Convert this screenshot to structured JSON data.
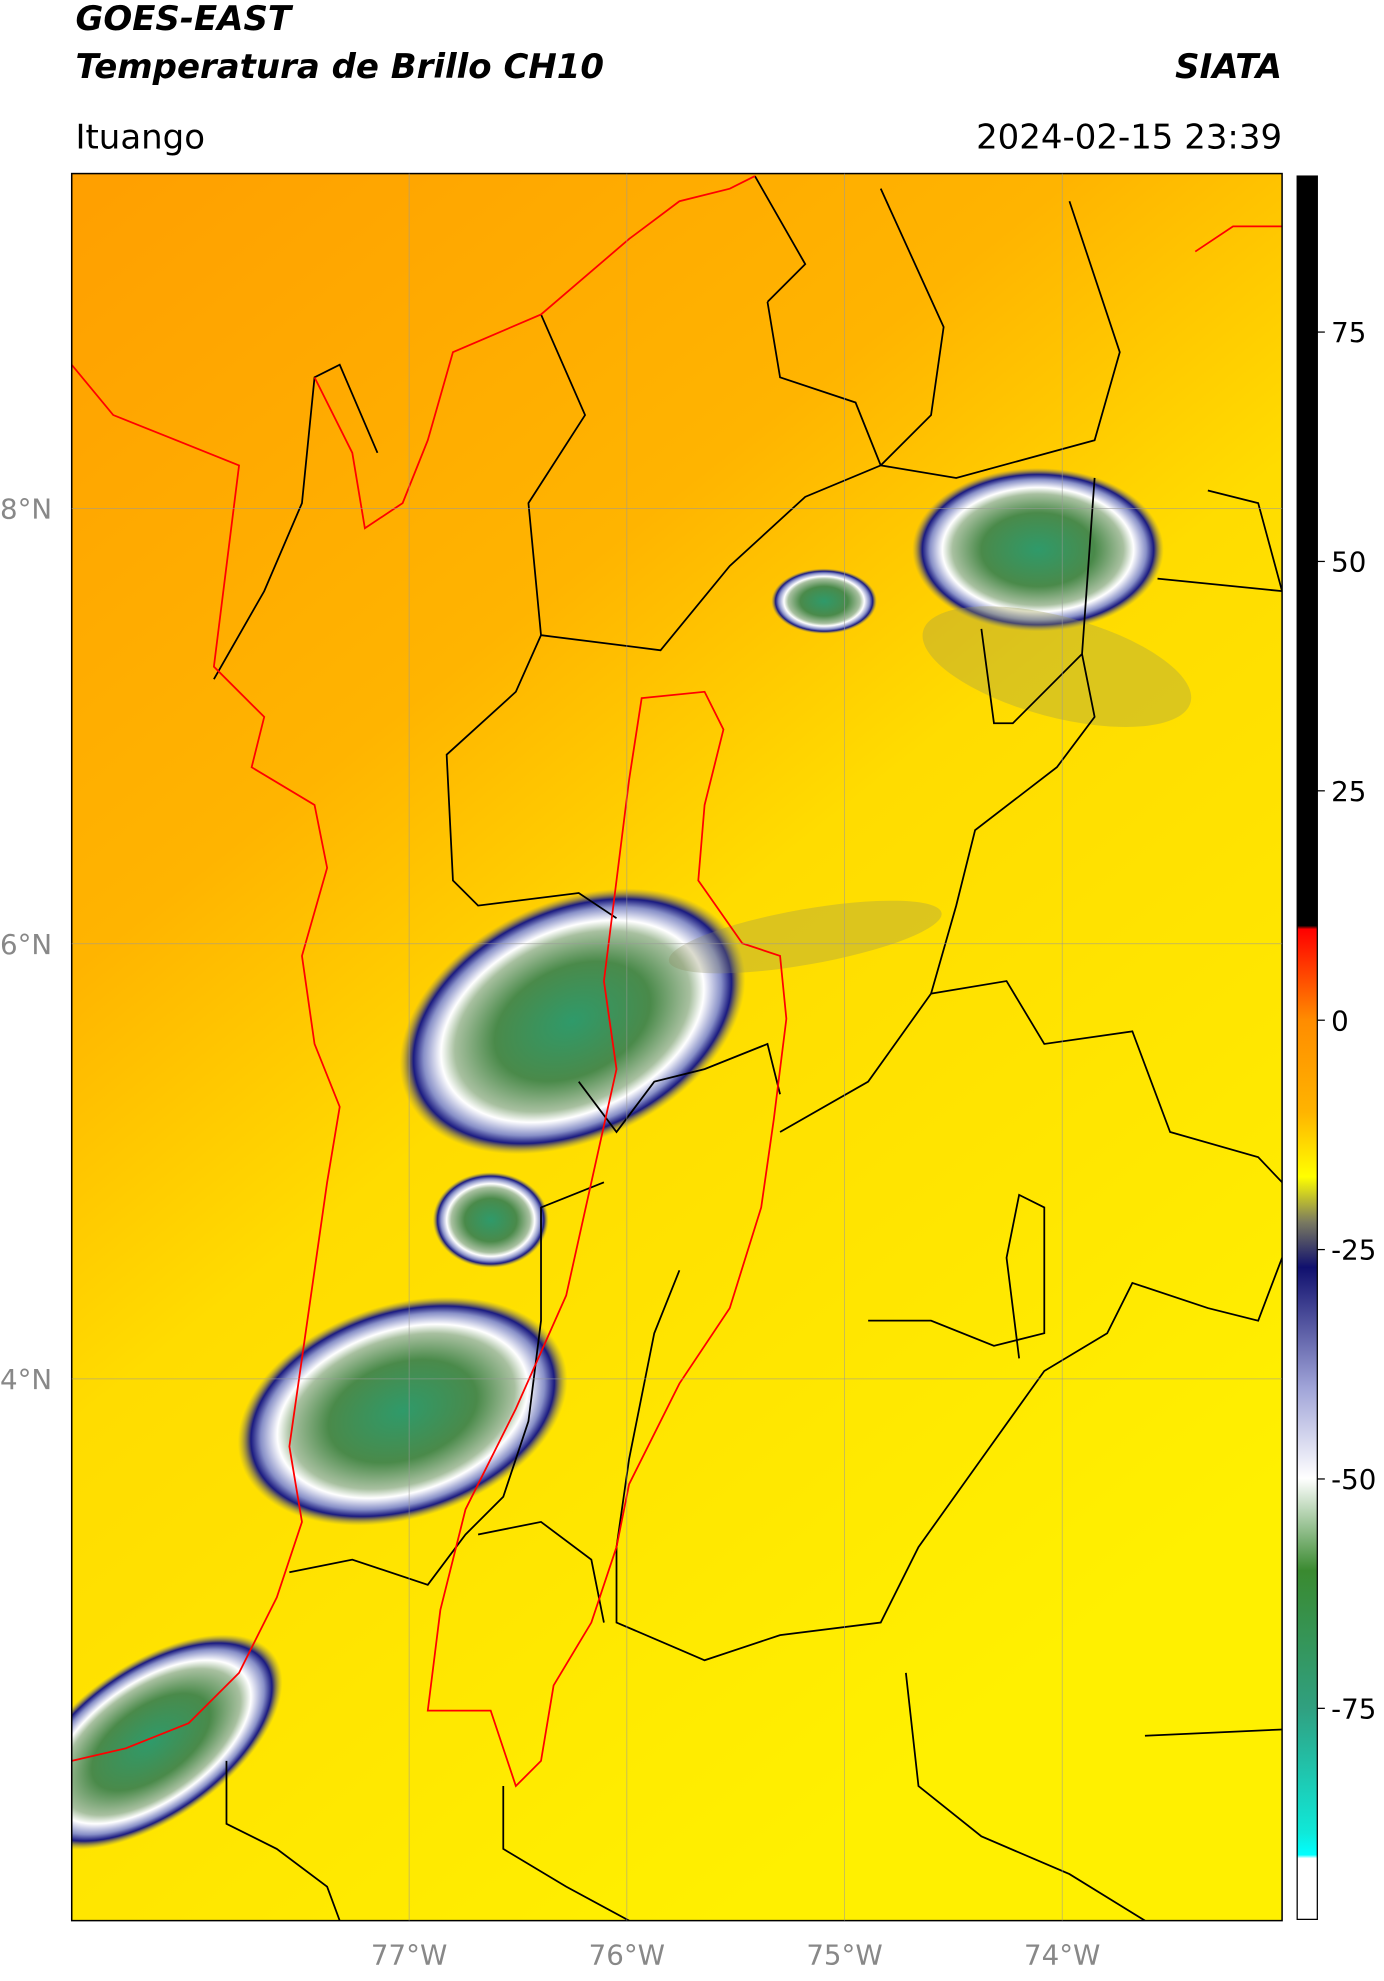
{
  "title": "GOES-EAST",
  "subtitle": "Temperatura de Brillo CH10",
  "source": "SIATA",
  "location": "Ituango",
  "datetime": "2024-02-15 23:39",
  "map": {
    "xlim": [
      -78.55,
      -72.99
    ],
    "ylim": [
      1.51,
      9.54
    ],
    "xticks": [
      {
        "value": -77,
        "label": "77°W"
      },
      {
        "value": -76,
        "label": "76°W"
      },
      {
        "value": -75,
        "label": "75°W"
      },
      {
        "value": -74,
        "label": "74°W"
      }
    ],
    "yticks": [
      {
        "value": 8,
        "label": "8°N"
      },
      {
        "value": 6,
        "label": "6°N"
      },
      {
        "value": 4,
        "label": "4°N"
      }
    ],
    "grid": true
  },
  "colorbar": {
    "clim": [
      -98,
      92
    ],
    "ticks": [
      75,
      50,
      25,
      0,
      -25,
      -50,
      -75
    ]
  }
}
